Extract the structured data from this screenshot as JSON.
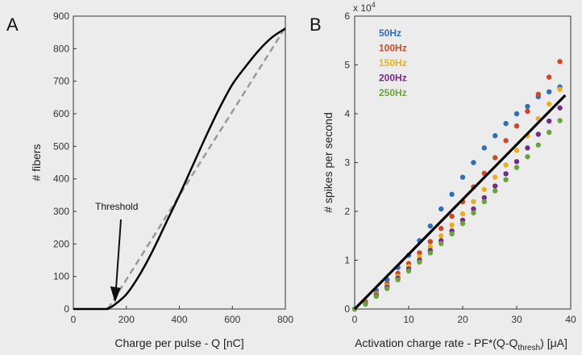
{
  "chart_data": [
    {
      "panel_label": "A",
      "type": "line",
      "xlabel": "Charge per pulse - Q [nC]",
      "ylabel": "# fibers",
      "xlim": [
        0,
        800
      ],
      "ylim": [
        0,
        900
      ],
      "xticks": [
        0,
        200,
        400,
        600,
        800
      ],
      "yticks": [
        0,
        100,
        200,
        300,
        400,
        500,
        600,
        700,
        800,
        900
      ],
      "annotation": {
        "text": "Threshold",
        "x": 130,
        "y": 20
      },
      "series": [
        {
          "style": "solid",
          "color": "#000000",
          "x": [
            0,
            120,
            130,
            150,
            200,
            250,
            300,
            350,
            400,
            450,
            500,
            550,
            600,
            650,
            700,
            750,
            800
          ],
          "y": [
            0,
            0,
            2,
            10,
            45,
            105,
            180,
            265,
            350,
            440,
            530,
            615,
            690,
            745,
            795,
            835,
            862
          ]
        },
        {
          "style": "dashed",
          "color": "#999999",
          "x": [
            130,
            800
          ],
          "y": [
            0,
            865
          ]
        }
      ]
    },
    {
      "panel_label": "B",
      "type": "scatter",
      "xlabel_main": "Activation charge rate - PF*(Q-Q",
      "xlabel_sub": "thresh",
      "xlabel_end": ") [μA]",
      "ylabel": "# spikes per second",
      "y_multiplier": "x 10",
      "y_multiplier_exp": "4",
      "xlim": [
        0,
        40
      ],
      "ylim": [
        0,
        6
      ],
      "xticks": [
        0,
        10,
        20,
        30,
        40
      ],
      "yticks": [
        0,
        1,
        2,
        3,
        4,
        5,
        6
      ],
      "legend_position": "top-left",
      "series": [
        {
          "name": "50Hz",
          "color": "#2e6fb5",
          "x": [
            0,
            2,
            4,
            6,
            8,
            10,
            12,
            14,
            16,
            18,
            20,
            22,
            24,
            26,
            28,
            30,
            32,
            34,
            36,
            38
          ],
          "y": [
            0,
            0.15,
            0.38,
            0.6,
            0.85,
            1.1,
            1.4,
            1.7,
            2.05,
            2.35,
            2.7,
            3.0,
            3.3,
            3.55,
            3.8,
            4.0,
            4.15,
            4.35,
            4.45,
            4.55
          ]
        },
        {
          "name": "100Hz",
          "color": "#c94a26",
          "x": [
            0,
            2,
            4,
            6,
            8,
            10,
            12,
            14,
            16,
            18,
            20,
            22,
            24,
            26,
            28,
            30,
            32,
            34,
            36,
            38
          ],
          "y": [
            0,
            0.13,
            0.32,
            0.52,
            0.73,
            0.93,
            1.15,
            1.38,
            1.65,
            1.9,
            2.2,
            2.5,
            2.78,
            3.1,
            3.45,
            3.75,
            4.05,
            4.4,
            4.75,
            5.07
          ]
        },
        {
          "name": "150Hz",
          "color": "#e8b020",
          "x": [
            0,
            2,
            4,
            6,
            8,
            10,
            12,
            14,
            16,
            18,
            20,
            22,
            24,
            26,
            28,
            30,
            32,
            34,
            36,
            38
          ],
          "y": [
            0,
            0.12,
            0.3,
            0.48,
            0.67,
            0.87,
            1.07,
            1.28,
            1.5,
            1.72,
            1.95,
            2.2,
            2.45,
            2.7,
            2.95,
            3.25,
            3.55,
            3.9,
            4.2,
            4.5
          ]
        },
        {
          "name": "200Hz",
          "color": "#742c87",
          "x": [
            0,
            2,
            4,
            6,
            8,
            10,
            12,
            14,
            16,
            18,
            20,
            22,
            24,
            26,
            28,
            30,
            32,
            34,
            36,
            38
          ],
          "y": [
            0,
            0.11,
            0.28,
            0.45,
            0.63,
            0.82,
            1.0,
            1.2,
            1.4,
            1.6,
            1.82,
            2.05,
            2.28,
            2.52,
            2.77,
            3.02,
            3.3,
            3.58,
            3.85,
            4.12
          ]
        },
        {
          "name": "250Hz",
          "color": "#6aa33e",
          "x": [
            0,
            2,
            4,
            6,
            8,
            10,
            12,
            14,
            16,
            18,
            20,
            22,
            24,
            26,
            28,
            30,
            32,
            34,
            36,
            38
          ],
          "y": [
            0,
            0.1,
            0.26,
            0.42,
            0.6,
            0.78,
            0.96,
            1.15,
            1.34,
            1.54,
            1.75,
            1.97,
            2.2,
            2.42,
            2.65,
            2.9,
            3.12,
            3.36,
            3.62,
            3.86
          ]
        }
      ],
      "fit_line": {
        "color": "#000000",
        "x": [
          0,
          39
        ],
        "y": [
          0,
          4.38
        ]
      }
    }
  ]
}
